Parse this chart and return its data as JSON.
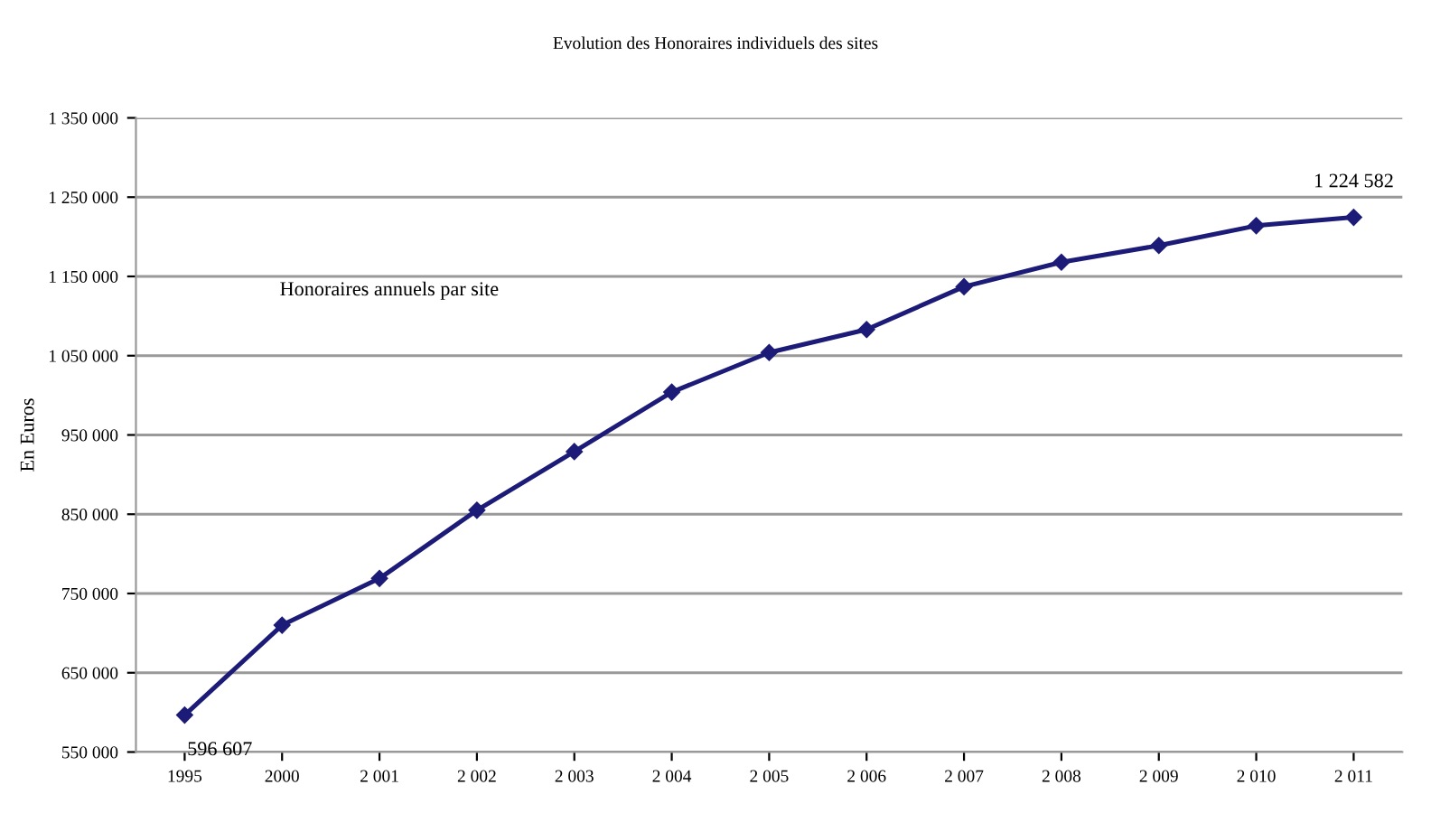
{
  "chart_data": {
    "type": "line",
    "title": "Evolution des Honoraires individuels des sites",
    "ylabel": "En Euros",
    "annotations": [
      "Honoraires annuels par site"
    ],
    "categories": [
      "1995",
      "2000",
      "2 001",
      "2 002",
      "2 003",
      "2 004",
      "2 005",
      "2 006",
      "2 007",
      "2 008",
      "2 009",
      "2 010",
      "2 011"
    ],
    "series": [
      {
        "color": "#1c1c78",
        "values": [
          596607,
          710000,
          769000,
          855000,
          929000,
          1004000,
          1054000,
          1083000,
          1137000,
          1168000,
          1189000,
          1214000,
          1224582
        ],
        "value_labels": [
          "596 607",
          null,
          null,
          null,
          null,
          null,
          null,
          null,
          null,
          null,
          null,
          null,
          "1 224 582"
        ]
      }
    ],
    "ylim": [
      550000,
      1350000
    ],
    "yticks": [
      {
        "value": 550000,
        "label": "550 000"
      },
      {
        "value": 650000,
        "label": "650 000"
      },
      {
        "value": 750000,
        "label": "750 000"
      },
      {
        "value": 850000,
        "label": "850 000"
      },
      {
        "value": 950000,
        "label": "950 000"
      },
      {
        "value": 1050000,
        "label": "1 050 000"
      },
      {
        "value": 1150000,
        "label": "1 150 000"
      },
      {
        "value": 1250000,
        "label": "1 250 000"
      },
      {
        "value": 1350000,
        "label": "1 350 000"
      }
    ],
    "grid": "y",
    "marker": "diamond",
    "line_style": "solid",
    "legend": false
  }
}
